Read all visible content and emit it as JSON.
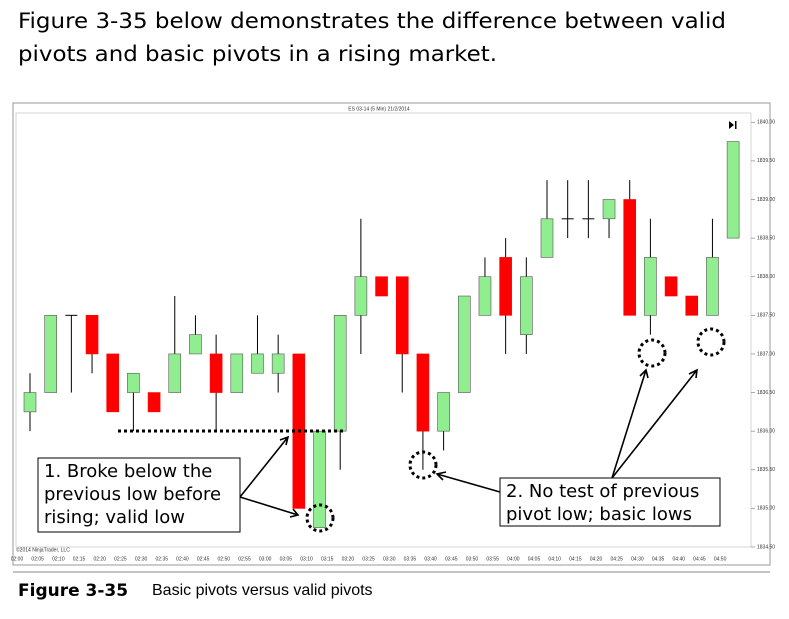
{
  "paragraph": {
    "lines": [
      "Figure 3-35 below demonstrates the difference between valid",
      "pivots and basic pivots in a rising market."
    ]
  },
  "figure": {
    "label": "Figure 3-35",
    "caption": "Basic pivots versus valid pivots"
  },
  "chart_data": {
    "type": "candlestick",
    "title": "ES 03-14 (5 Min) 21/2/2014",
    "copyright": "©2014 NinjaTrader, LLC",
    "categories": [
      "02:00",
      "02:05",
      "02:10",
      "02:15",
      "02:20",
      "02:25",
      "02:30",
      "02:35",
      "02:40",
      "02:45",
      "02:50",
      "02:55",
      "03:00",
      "03:05",
      "03:10",
      "03:15",
      "03:20",
      "03:25",
      "03:30",
      "03:35",
      "03:40",
      "03:45",
      "03:50",
      "03:55",
      "04:00",
      "04:05",
      "04:10",
      "04:15",
      "04:20",
      "04:25",
      "04:30",
      "04:35",
      "04:40",
      "04:45",
      "04:50"
    ],
    "open": [
      1836.25,
      1836.5,
      1837.5,
      1837.5,
      1837.0,
      1836.5,
      1836.5,
      1836.5,
      1837.0,
      1837.0,
      1836.5,
      1836.75,
      1836.75,
      1837.0,
      1834.75,
      1836.0,
      1837.5,
      1838.0,
      1838.0,
      1837.0,
      1836.0,
      1836.5,
      1837.5,
      1838.25,
      1837.25,
      1838.25,
      1838.75,
      1838.75,
      1838.75,
      1839.0,
      1837.5,
      1838.0,
      1837.75,
      1837.5,
      1838.5
    ],
    "high": [
      1836.75,
      1837.5,
      1837.5,
      1837.5,
      1837.0,
      1836.75,
      1836.5,
      1837.75,
      1837.5,
      1837.25,
      1837.0,
      1837.5,
      1837.25,
      1837.0,
      1836.0,
      1837.5,
      1838.75,
      1838.0,
      1838.0,
      1837.0,
      1836.5,
      1837.75,
      1838.25,
      1838.5,
      1838.25,
      1839.25,
      1839.25,
      1839.25,
      1839.0,
      1839.25,
      1838.75,
      1838.0,
      1837.75,
      1838.75,
      1839.75
    ],
    "low": [
      1836.0,
      1836.5,
      1836.5,
      1836.75,
      1836.25,
      1836.0,
      1836.25,
      1836.5,
      1837.0,
      1836.0,
      1836.5,
      1836.75,
      1836.5,
      1835.0,
      1834.75,
      1835.5,
      1837.0,
      1837.75,
      1836.5,
      1835.5,
      1835.75,
      1836.5,
      1837.5,
      1837.0,
      1837.0,
      1838.25,
      1838.5,
      1838.5,
      1838.5,
      1837.5,
      1837.25,
      1837.75,
      1837.5,
      1837.5,
      1838.5
    ],
    "close": [
      1836.5,
      1837.5,
      1837.5,
      1837.0,
      1836.25,
      1836.75,
      1836.25,
      1837.0,
      1837.25,
      1836.5,
      1837.0,
      1837.0,
      1837.0,
      1835.0,
      1836.0,
      1837.5,
      1838.0,
      1837.75,
      1837.0,
      1836.0,
      1836.5,
      1837.75,
      1838.0,
      1837.5,
      1838.0,
      1838.75,
      1838.75,
      1838.75,
      1839.0,
      1837.5,
      1838.25,
      1837.75,
      1837.5,
      1838.25,
      1839.75
    ],
    "up_color": "#90ee90",
    "down_color": "#ff0000",
    "ylim": [
      1834.5,
      1840.12
    ],
    "yticks": [
      {
        "value": 1834.5,
        "label": "1834.50"
      },
      {
        "value": 1835,
        "label": "1835.00"
      },
      {
        "value": 1835.5,
        "label": "1835.50"
      },
      {
        "value": 1836,
        "label": "1836.00"
      },
      {
        "value": 1836.5,
        "label": "1836.50"
      },
      {
        "value": 1837,
        "label": "1837.00"
      },
      {
        "value": 1837.5,
        "label": "1837.50"
      },
      {
        "value": 1838,
        "label": "1838.00"
      },
      {
        "value": 1838.5,
        "label": "1838.50"
      },
      {
        "value": 1839,
        "label": "1839.00"
      },
      {
        "value": 1839.5,
        "label": "1839.50"
      },
      {
        "value": 1840,
        "label": "1840.00"
      }
    ],
    "annotations": [
      {
        "lines": [
          "1. Broke below the",
          "previous low before",
          "rising; valid low"
        ]
      },
      {
        "lines": [
          "2. No test of previous",
          "pivot low; basic lows"
        ]
      }
    ]
  }
}
